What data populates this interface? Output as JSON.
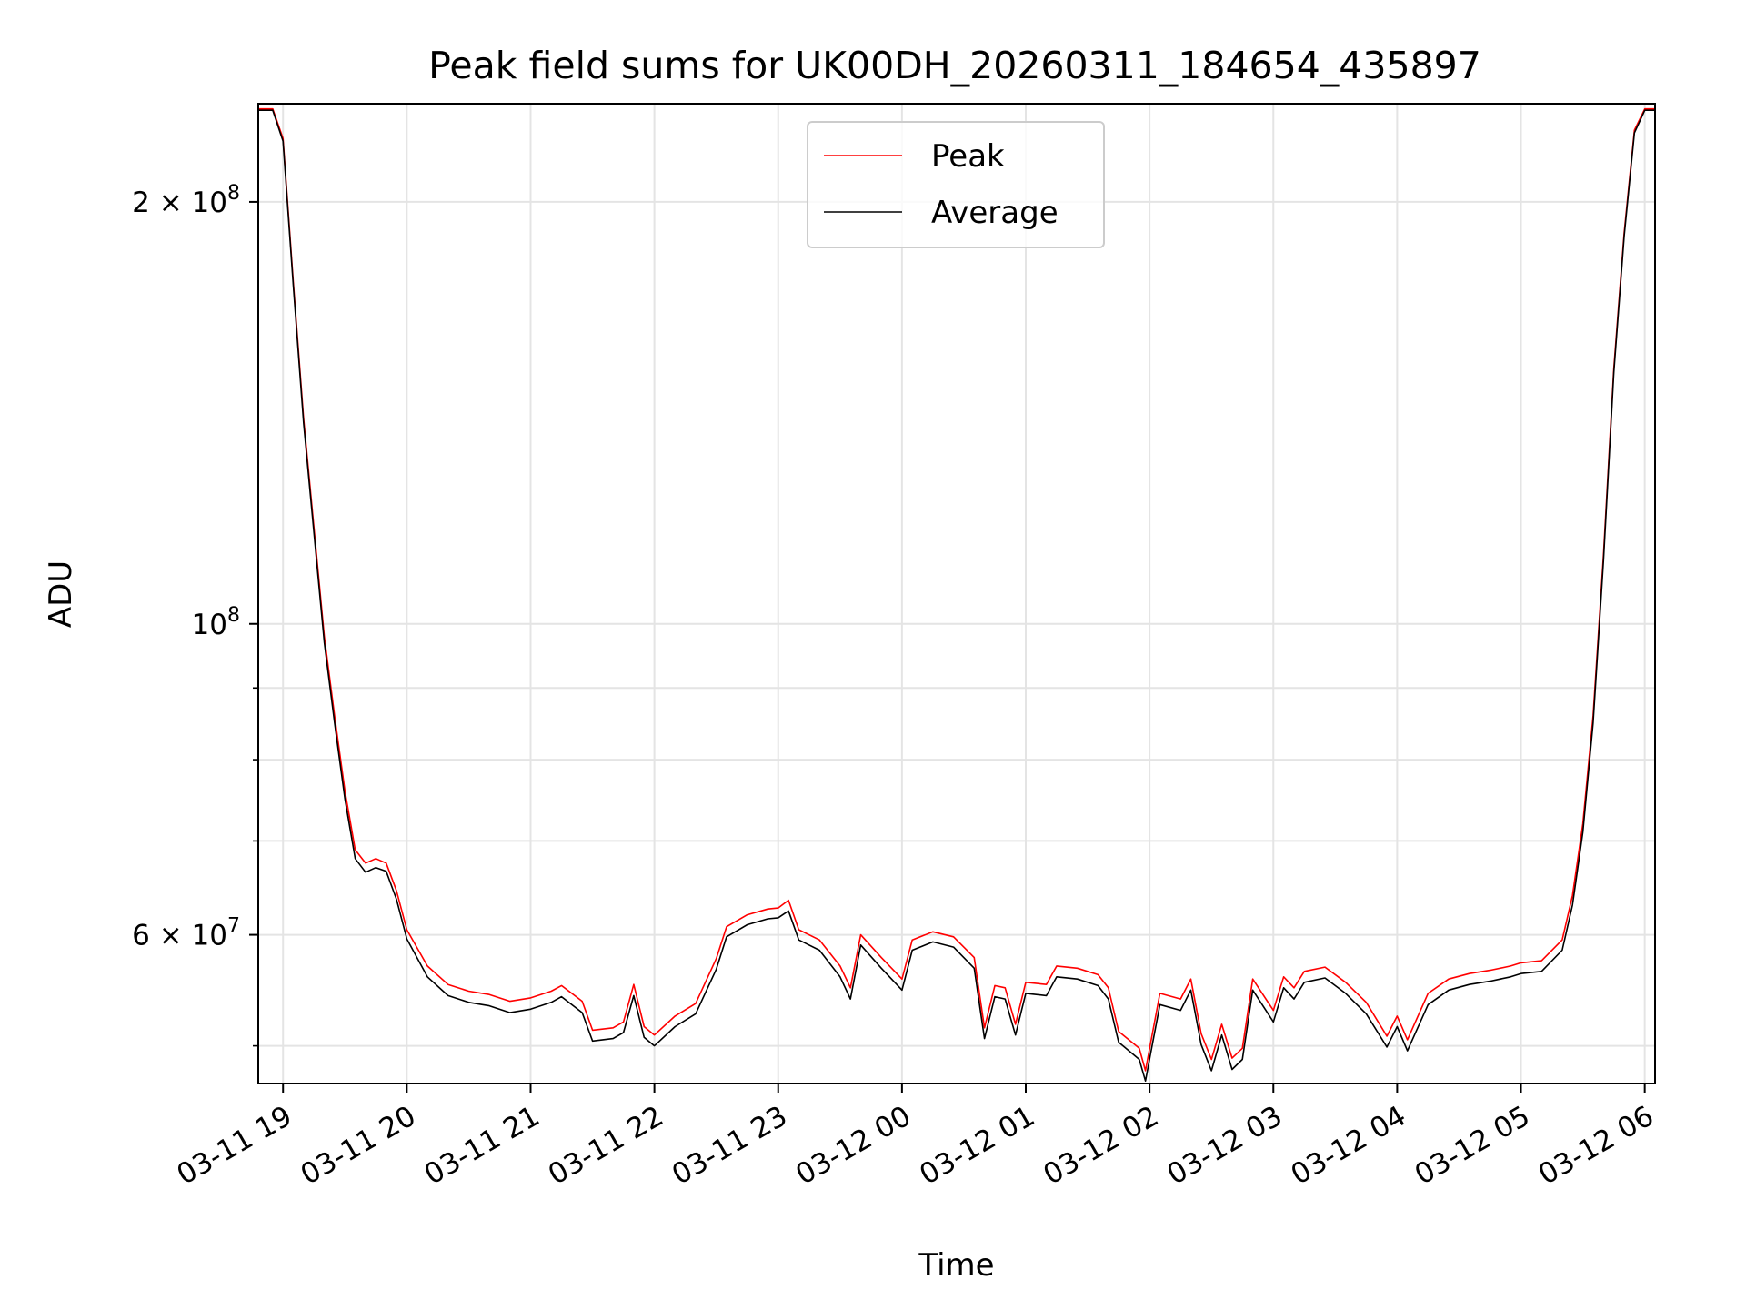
{
  "chart_data": {
    "type": "line",
    "title": "Peak field sums for UK00DH_20260311_184654_435897",
    "xlabel": "Time",
    "ylabel": "ADU",
    "yscale": "log",
    "grid": true,
    "legend": "upper center",
    "xlim": [
      "2026-03-11 18:48",
      "2026-03-12 06:05"
    ],
    "ylim": [
      47000000,
      235000000
    ],
    "x_ticks": [
      "03-11 19",
      "03-11 20",
      "03-11 21",
      "03-11 22",
      "03-11 23",
      "03-12 00",
      "03-12 01",
      "03-12 02",
      "03-12 03",
      "03-12 04",
      "03-12 05",
      "03-12 06"
    ],
    "y_tick_labels": [
      {
        "value": 200000000,
        "mantissa": "2",
        "exponent": "8"
      },
      {
        "value": 100000000,
        "mantissa": "",
        "exponent": "8"
      },
      {
        "value": 60000000,
        "mantissa": "6",
        "exponent": "7"
      }
    ],
    "y_minor_ticks": [
      50000000,
      70000000,
      80000000,
      90000000
    ],
    "series": [
      {
        "name": "Peak",
        "color": "#ff0000",
        "points": [
          [
            "2026-03-11 18:48",
            233000000
          ],
          [
            "2026-03-11 18:55",
            233000000
          ],
          [
            "2026-03-11 19:00",
            222000000
          ],
          [
            "2026-03-11 19:05",
            175000000
          ],
          [
            "2026-03-11 19:10",
            140000000
          ],
          [
            "2026-03-11 19:15",
            117000000
          ],
          [
            "2026-03-11 19:20",
            98000000
          ],
          [
            "2026-03-11 19:25",
            86000000
          ],
          [
            "2026-03-11 19:30",
            76000000
          ],
          [
            "2026-03-11 19:35",
            69000000
          ],
          [
            "2026-03-11 19:40",
            67500000
          ],
          [
            "2026-03-11 19:45",
            68000000
          ],
          [
            "2026-03-11 19:50",
            67500000
          ],
          [
            "2026-03-11 19:55",
            64500000
          ],
          [
            "2026-03-11 20:00",
            60500000
          ],
          [
            "2026-03-11 20:10",
            57000000
          ],
          [
            "2026-03-11 20:20",
            55300000
          ],
          [
            "2026-03-11 20:30",
            54700000
          ],
          [
            "2026-03-11 20:40",
            54400000
          ],
          [
            "2026-03-11 20:50",
            53800000
          ],
          [
            "2026-03-11 21:00",
            54100000
          ],
          [
            "2026-03-11 21:10",
            54700000
          ],
          [
            "2026-03-11 21:15",
            55200000
          ],
          [
            "2026-03-11 21:25",
            53800000
          ],
          [
            "2026-03-11 21:30",
            51300000
          ],
          [
            "2026-03-11 21:40",
            51500000
          ],
          [
            "2026-03-11 21:45",
            52000000
          ],
          [
            "2026-03-11 21:50",
            55300000
          ],
          [
            "2026-03-11 21:55",
            51600000
          ],
          [
            "2026-03-11 22:00",
            50900000
          ],
          [
            "2026-03-11 22:10",
            52500000
          ],
          [
            "2026-03-11 22:20",
            53600000
          ],
          [
            "2026-03-11 22:30",
            57700000
          ],
          [
            "2026-03-11 22:35",
            60800000
          ],
          [
            "2026-03-11 22:45",
            62000000
          ],
          [
            "2026-03-11 22:55",
            62600000
          ],
          [
            "2026-03-11 23:00",
            62700000
          ],
          [
            "2026-03-11 23:05",
            63500000
          ],
          [
            "2026-03-11 23:10",
            60500000
          ],
          [
            "2026-03-11 23:20",
            59500000
          ],
          [
            "2026-03-11 23:30",
            57000000
          ],
          [
            "2026-03-11 23:35",
            55000000
          ],
          [
            "2026-03-11 23:40",
            60000000
          ],
          [
            "2026-03-11 23:50",
            57800000
          ],
          [
            "2026-03-12 00:00",
            55800000
          ],
          [
            "2026-03-12 00:05",
            59500000
          ],
          [
            "2026-03-12 00:15",
            60300000
          ],
          [
            "2026-03-12 00:25",
            59800000
          ],
          [
            "2026-03-12 00:35",
            57800000
          ],
          [
            "2026-03-12 00:40",
            51500000
          ],
          [
            "2026-03-12 00:45",
            55200000
          ],
          [
            "2026-03-12 00:50",
            55000000
          ],
          [
            "2026-03-12 00:55",
            51800000
          ],
          [
            "2026-03-12 01:00",
            55500000
          ],
          [
            "2026-03-12 01:10",
            55300000
          ],
          [
            "2026-03-12 01:15",
            57000000
          ],
          [
            "2026-03-12 01:25",
            56800000
          ],
          [
            "2026-03-12 01:35",
            56200000
          ],
          [
            "2026-03-12 01:40",
            55000000
          ],
          [
            "2026-03-12 01:45",
            51200000
          ],
          [
            "2026-03-12 01:55",
            49800000
          ],
          [
            "2026-03-12 01:58",
            48000000
          ],
          [
            "2026-03-12 02:05",
            54500000
          ],
          [
            "2026-03-12 02:15",
            54000000
          ],
          [
            "2026-03-12 02:20",
            55800000
          ],
          [
            "2026-03-12 02:25",
            51000000
          ],
          [
            "2026-03-12 02:30",
            48900000
          ],
          [
            "2026-03-12 02:35",
            51800000
          ],
          [
            "2026-03-12 02:40",
            49000000
          ],
          [
            "2026-03-12 02:45",
            49800000
          ],
          [
            "2026-03-12 02:50",
            55800000
          ],
          [
            "2026-03-12 03:00",
            53000000
          ],
          [
            "2026-03-12 03:05",
            56000000
          ],
          [
            "2026-03-12 03:10",
            55000000
          ],
          [
            "2026-03-12 03:15",
            56500000
          ],
          [
            "2026-03-12 03:25",
            56900000
          ],
          [
            "2026-03-12 03:35",
            55500000
          ],
          [
            "2026-03-12 03:45",
            53700000
          ],
          [
            "2026-03-12 03:55",
            50800000
          ],
          [
            "2026-03-12 04:00",
            52500000
          ],
          [
            "2026-03-12 04:05",
            50500000
          ],
          [
            "2026-03-12 04:15",
            54500000
          ],
          [
            "2026-03-12 04:25",
            55800000
          ],
          [
            "2026-03-12 04:35",
            56300000
          ],
          [
            "2026-03-12 04:45",
            56600000
          ],
          [
            "2026-03-12 04:55",
            57000000
          ],
          [
            "2026-03-12 05:00",
            57300000
          ],
          [
            "2026-03-12 05:10",
            57500000
          ],
          [
            "2026-03-12 05:20",
            59500000
          ],
          [
            "2026-03-12 05:25",
            64000000
          ],
          [
            "2026-03-12 05:30",
            72000000
          ],
          [
            "2026-03-12 05:35",
            86000000
          ],
          [
            "2026-03-12 05:40",
            112000000
          ],
          [
            "2026-03-12 05:45",
            152000000
          ],
          [
            "2026-03-12 05:50",
            190000000
          ],
          [
            "2026-03-12 05:55",
            225000000
          ],
          [
            "2026-03-12 06:00",
            233000000
          ],
          [
            "2026-03-12 06:05",
            233000000
          ]
        ]
      },
      {
        "name": "Average",
        "color": "#000000",
        "points": [
          [
            "2026-03-11 18:48",
            232500000
          ],
          [
            "2026-03-11 18:55",
            232500000
          ],
          [
            "2026-03-11 19:00",
            221000000
          ],
          [
            "2026-03-11 19:05",
            174000000
          ],
          [
            "2026-03-11 19:10",
            139000000
          ],
          [
            "2026-03-11 19:15",
            116000000
          ],
          [
            "2026-03-11 19:20",
            97000000
          ],
          [
            "2026-03-11 19:25",
            85000000
          ],
          [
            "2026-03-11 19:30",
            75000000
          ],
          [
            "2026-03-11 19:35",
            68000000
          ],
          [
            "2026-03-11 19:40",
            66500000
          ],
          [
            "2026-03-11 19:45",
            67000000
          ],
          [
            "2026-03-11 19:50",
            66600000
          ],
          [
            "2026-03-11 19:55",
            63600000
          ],
          [
            "2026-03-11 20:00",
            59600000
          ],
          [
            "2026-03-11 20:10",
            56000000
          ],
          [
            "2026-03-11 20:20",
            54300000
          ],
          [
            "2026-03-11 20:30",
            53700000
          ],
          [
            "2026-03-11 20:40",
            53400000
          ],
          [
            "2026-03-11 20:50",
            52800000
          ],
          [
            "2026-03-11 21:00",
            53100000
          ],
          [
            "2026-03-11 21:10",
            53700000
          ],
          [
            "2026-03-11 21:15",
            54200000
          ],
          [
            "2026-03-11 21:25",
            52800000
          ],
          [
            "2026-03-11 21:30",
            50400000
          ],
          [
            "2026-03-11 21:40",
            50600000
          ],
          [
            "2026-03-11 21:45",
            51100000
          ],
          [
            "2026-03-11 21:50",
            54300000
          ],
          [
            "2026-03-11 21:55",
            50700000
          ],
          [
            "2026-03-11 22:00",
            50000000
          ],
          [
            "2026-03-11 22:10",
            51600000
          ],
          [
            "2026-03-11 22:20",
            52700000
          ],
          [
            "2026-03-11 22:30",
            56700000
          ],
          [
            "2026-03-11 22:35",
            59800000
          ],
          [
            "2026-03-11 22:45",
            61000000
          ],
          [
            "2026-03-11 22:55",
            61600000
          ],
          [
            "2026-03-11 23:00",
            61700000
          ],
          [
            "2026-03-11 23:05",
            62400000
          ],
          [
            "2026-03-11 23:10",
            59500000
          ],
          [
            "2026-03-11 23:20",
            58500000
          ],
          [
            "2026-03-11 23:30",
            56000000
          ],
          [
            "2026-03-11 23:35",
            54000000
          ],
          [
            "2026-03-11 23:40",
            59000000
          ],
          [
            "2026-03-11 23:50",
            56800000
          ],
          [
            "2026-03-12 00:00",
            54800000
          ],
          [
            "2026-03-12 00:05",
            58500000
          ],
          [
            "2026-03-12 00:15",
            59300000
          ],
          [
            "2026-03-12 00:25",
            58800000
          ],
          [
            "2026-03-12 00:35",
            56800000
          ],
          [
            "2026-03-12 00:40",
            50600000
          ],
          [
            "2026-03-12 00:45",
            54200000
          ],
          [
            "2026-03-12 00:50",
            54000000
          ],
          [
            "2026-03-12 00:55",
            50900000
          ],
          [
            "2026-03-12 01:00",
            54500000
          ],
          [
            "2026-03-12 01:10",
            54300000
          ],
          [
            "2026-03-12 01:15",
            56000000
          ],
          [
            "2026-03-12 01:25",
            55800000
          ],
          [
            "2026-03-12 01:35",
            55200000
          ],
          [
            "2026-03-12 01:40",
            54000000
          ],
          [
            "2026-03-12 01:45",
            50300000
          ],
          [
            "2026-03-12 01:55",
            48900000
          ],
          [
            "2026-03-12 01:58",
            47200000
          ],
          [
            "2026-03-12 02:05",
            53500000
          ],
          [
            "2026-03-12 02:15",
            53000000
          ],
          [
            "2026-03-12 02:20",
            54800000
          ],
          [
            "2026-03-12 02:25",
            50100000
          ],
          [
            "2026-03-12 02:30",
            48000000
          ],
          [
            "2026-03-12 02:35",
            50900000
          ],
          [
            "2026-03-12 02:40",
            48100000
          ],
          [
            "2026-03-12 02:45",
            48900000
          ],
          [
            "2026-03-12 02:50",
            54800000
          ],
          [
            "2026-03-12 03:00",
            52000000
          ],
          [
            "2026-03-12 03:05",
            55000000
          ],
          [
            "2026-03-12 03:10",
            54000000
          ],
          [
            "2026-03-12 03:15",
            55500000
          ],
          [
            "2026-03-12 03:25",
            55900000
          ],
          [
            "2026-03-12 03:35",
            54500000
          ],
          [
            "2026-03-12 03:45",
            52700000
          ],
          [
            "2026-03-12 03:55",
            49900000
          ],
          [
            "2026-03-12 04:00",
            51600000
          ],
          [
            "2026-03-12 04:05",
            49600000
          ],
          [
            "2026-03-12 04:15",
            53500000
          ],
          [
            "2026-03-12 04:25",
            54800000
          ],
          [
            "2026-03-12 04:35",
            55300000
          ],
          [
            "2026-03-12 04:45",
            55600000
          ],
          [
            "2026-03-12 04:55",
            56000000
          ],
          [
            "2026-03-12 05:00",
            56300000
          ],
          [
            "2026-03-12 05:10",
            56500000
          ],
          [
            "2026-03-12 05:20",
            58500000
          ],
          [
            "2026-03-12 05:25",
            63000000
          ],
          [
            "2026-03-12 05:30",
            71000000
          ],
          [
            "2026-03-12 05:35",
            85000000
          ],
          [
            "2026-03-12 05:40",
            111000000
          ],
          [
            "2026-03-12 05:45",
            151000000
          ],
          [
            "2026-03-12 05:50",
            189000000
          ],
          [
            "2026-03-12 05:55",
            224000000
          ],
          [
            "2026-03-12 06:00",
            232500000
          ],
          [
            "2026-03-12 06:05",
            232500000
          ]
        ]
      }
    ]
  }
}
